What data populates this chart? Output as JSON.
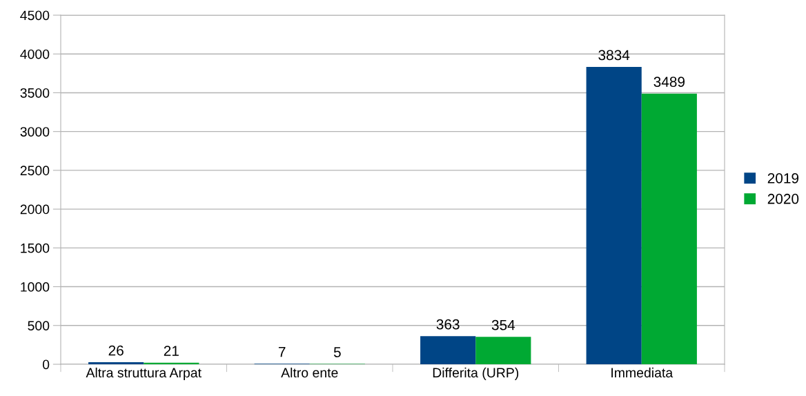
{
  "chart_data": {
    "type": "bar",
    "categories": [
      "Altra struttura Arpat",
      "Altro ente",
      "Differita (URP)",
      "Immediata"
    ],
    "series": [
      {
        "name": "2019",
        "color": "#004586",
        "values": [
          26,
          7,
          363,
          3834
        ]
      },
      {
        "name": "2020",
        "color": "#00a933",
        "values": [
          21,
          5,
          354,
          3489
        ]
      }
    ],
    "ylim": [
      0,
      4500
    ],
    "yticks": [
      0,
      500,
      1000,
      1500,
      2000,
      2500,
      3000,
      3500,
      4000,
      4500
    ],
    "grid": "y",
    "legend": "right",
    "data_labels": true
  }
}
